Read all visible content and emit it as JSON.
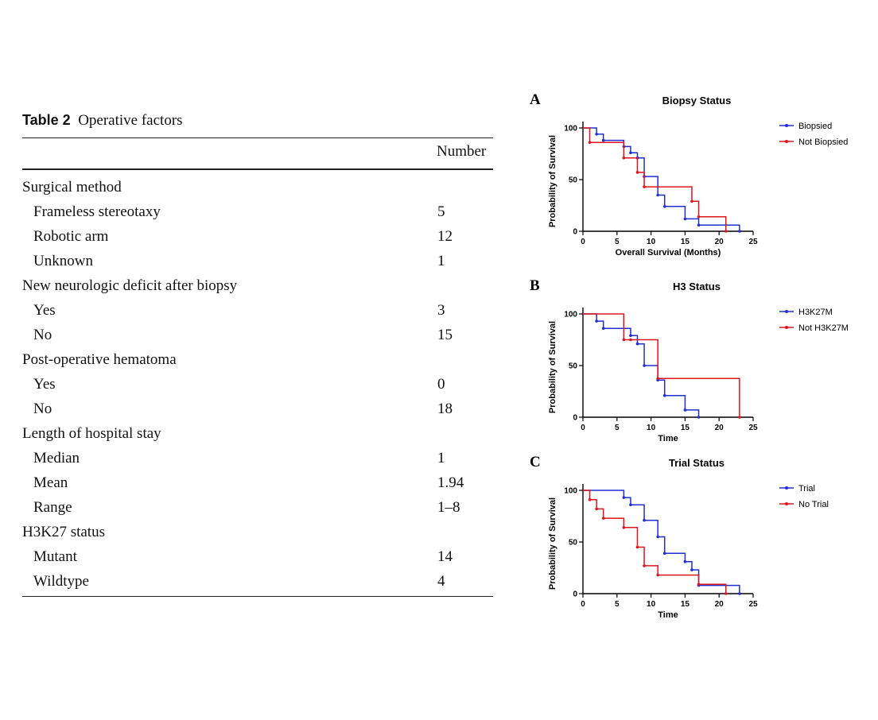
{
  "table": {
    "label": "Table 2",
    "title": "Operative factors",
    "column_header": "Number",
    "rows": [
      {
        "label": "Surgical method",
        "value": "",
        "indent": false
      },
      {
        "label": "Frameless stereotaxy",
        "value": "5",
        "indent": true
      },
      {
        "label": "Robotic arm",
        "value": "12",
        "indent": true
      },
      {
        "label": "Unknown",
        "value": "1",
        "indent": true
      },
      {
        "label": "New neurologic deficit after biopsy",
        "value": "",
        "indent": false
      },
      {
        "label": "Yes",
        "value": "3",
        "indent": true
      },
      {
        "label": "No",
        "value": "15",
        "indent": true
      },
      {
        "label": "Post-operative hematoma",
        "value": "",
        "indent": false
      },
      {
        "label": "Yes",
        "value": "0",
        "indent": true
      },
      {
        "label": "No",
        "value": "18",
        "indent": true
      },
      {
        "label": "Length of hospital stay",
        "value": "",
        "indent": false
      },
      {
        "label": "Median",
        "value": "1",
        "indent": true
      },
      {
        "label": "Mean",
        "value": "1.94",
        "indent": true
      },
      {
        "label": "Range",
        "value": "1–8",
        "indent": true
      },
      {
        "label": "H3K27 status",
        "value": "",
        "indent": false
      },
      {
        "label": "Mutant",
        "value": "14",
        "indent": true
      },
      {
        "label": "Wildtype",
        "value": "4",
        "indent": true
      }
    ]
  },
  "chart_data": [
    {
      "type": "line",
      "panel_letter": "A",
      "title": "Biopsy Status",
      "xlabel": "Overall Survival (Months)",
      "ylabel": "Probability of Survival",
      "xlim": [
        0,
        25
      ],
      "ylim": [
        0,
        100
      ],
      "xticks": [
        0,
        5,
        10,
        15,
        20,
        25
      ],
      "yticks": [
        0,
        50,
        100
      ],
      "legend": "right",
      "series": [
        {
          "name": "Biopsied",
          "color": "#1f2fd6",
          "x": [
            0,
            2,
            3,
            6,
            7,
            8,
            9,
            11,
            12,
            15,
            17,
            23
          ],
          "y": [
            100,
            94,
            88,
            82,
            76,
            71,
            53,
            35,
            24,
            12,
            6,
            0
          ]
        },
        {
          "name": "Not Biopsied",
          "color": "#e0141d",
          "x": [
            0,
            1,
            6,
            8,
            9,
            16,
            17,
            21
          ],
          "y": [
            100,
            86,
            71,
            57,
            43,
            29,
            14,
            0
          ]
        }
      ]
    },
    {
      "type": "line",
      "panel_letter": "B",
      "title": "H3 Status",
      "xlabel": "Time",
      "ylabel": "Probability of Survival",
      "xlim": [
        0,
        25
      ],
      "ylim": [
        0,
        100
      ],
      "xticks": [
        0,
        5,
        10,
        15,
        20,
        25
      ],
      "yticks": [
        0,
        50,
        100
      ],
      "legend": "right",
      "series": [
        {
          "name": "H3K27M",
          "color": "#1f2fd6",
          "x": [
            0,
            2,
            3,
            7,
            8,
            9,
            11,
            12,
            15,
            17
          ],
          "y": [
            100,
            93,
            86,
            79,
            71,
            50,
            36,
            21,
            7,
            0
          ]
        },
        {
          "name": "Not H3K27M",
          "color": "#e0141d",
          "x": [
            0,
            6,
            7,
            11,
            23
          ],
          "y": [
            100,
            75,
            75,
            37.5,
            0
          ]
        }
      ]
    },
    {
      "type": "line",
      "panel_letter": "C",
      "title": "Trial Status",
      "xlabel": "Time",
      "ylabel": "Probability of Survival",
      "xlim": [
        0,
        25
      ],
      "ylim": [
        0,
        100
      ],
      "xticks": [
        0,
        5,
        10,
        15,
        20,
        25
      ],
      "yticks": [
        0,
        50,
        100
      ],
      "legend": "right",
      "series": [
        {
          "name": "Trial",
          "color": "#1f2fd6",
          "x": [
            0,
            6,
            7,
            9,
            11,
            12,
            15,
            16,
            17,
            23
          ],
          "y": [
            100,
            93,
            86,
            71,
            55,
            39,
            31,
            23,
            8,
            0
          ]
        },
        {
          "name": "No Trial",
          "color": "#e0141d",
          "x": [
            0,
            1,
            2,
            3,
            6,
            8,
            9,
            11,
            17,
            21
          ],
          "y": [
            100,
            91,
            82,
            73,
            64,
            45,
            27,
            18,
            9,
            0
          ]
        }
      ]
    }
  ]
}
